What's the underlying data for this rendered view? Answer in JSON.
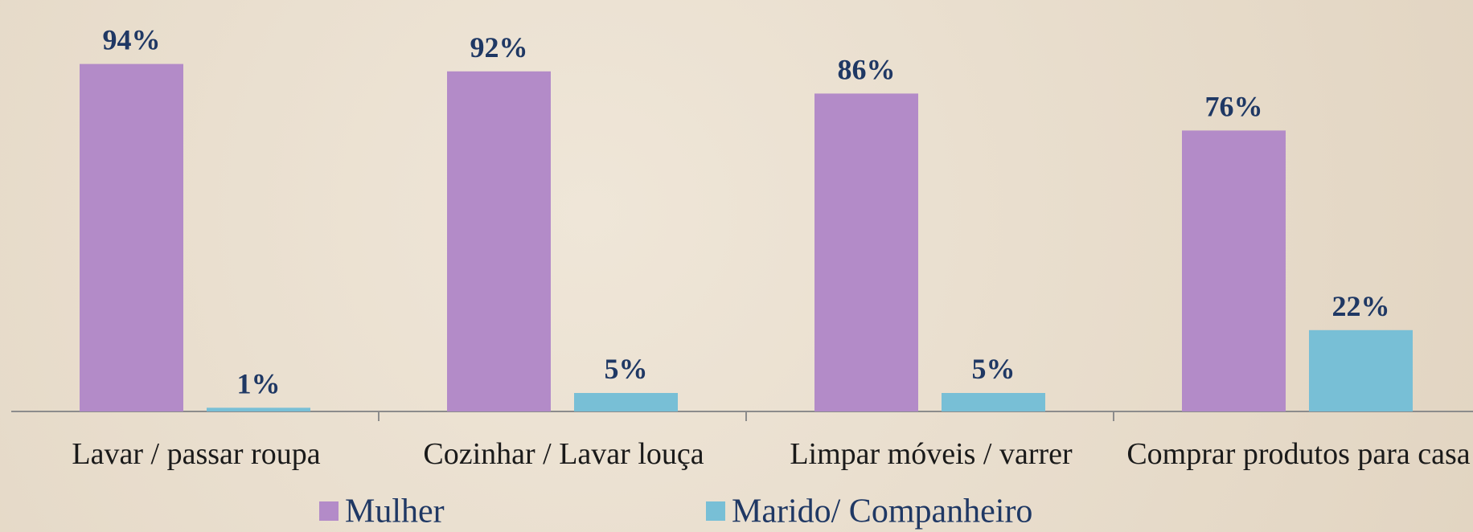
{
  "chart_data": {
    "type": "bar",
    "categories": [
      "Lavar / passar roupa",
      "Cozinhar / Lavar louça",
      "Limpar móveis / varrer",
      "Comprar produtos para casa"
    ],
    "series": [
      {
        "name": "Mulher",
        "color": "#b38bc8",
        "values": [
          94,
          92,
          86,
          76
        ],
        "value_labels": [
          "94%",
          "92%",
          "86%",
          "76%"
        ]
      },
      {
        "name": "Marido/ Companheiro",
        "color": "#78bfd6",
        "values": [
          1,
          5,
          5,
          22
        ],
        "value_labels": [
          "1%",
          "5%",
          "5%",
          "22%"
        ]
      }
    ],
    "ylim": [
      0,
      100
    ]
  }
}
